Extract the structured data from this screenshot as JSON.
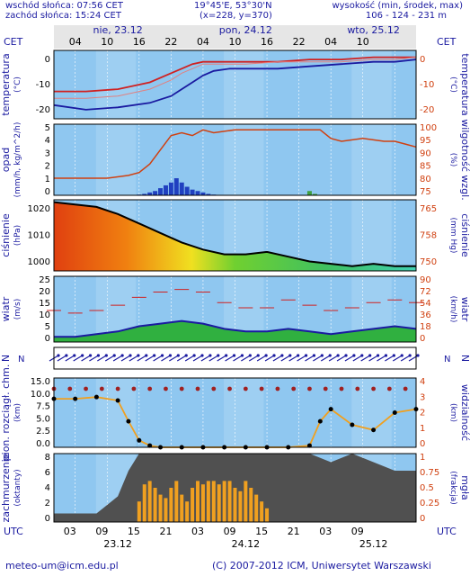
{
  "header": {
    "sunrise": "wschód słońca: 07:56 CET",
    "sunset": "zachód słońca: 15:24 CET",
    "coords": "19°45'E, 53°30'N",
    "grid": "(x=228, y=370)",
    "height_label": "wysokość (min, środek, max)",
    "height_values": "106 - 124 - 231 m"
  },
  "top_axis": {
    "tz_left": "CET",
    "tz_right": "CET",
    "days": [
      {
        "label": "nie, 23.12",
        "hour": 12
      },
      {
        "label": "pon, 24.12",
        "hour": 36
      },
      {
        "label": "wto, 25.12",
        "hour": 60
      }
    ],
    "hour_labels": [
      "04",
      "10",
      "16",
      "22",
      "04",
      "10",
      "16",
      "22",
      "04",
      "10"
    ]
  },
  "bottom_axis": {
    "tz_left": "UTC",
    "tz_right": "UTC",
    "hour_labels": [
      "03",
      "09",
      "15",
      "21",
      "03",
      "09",
      "15",
      "21",
      "03",
      "09"
    ],
    "days": [
      {
        "label": "23.12",
        "hour": 12
      },
      {
        "label": "24.12",
        "hour": 36
      },
      {
        "label": "25.12",
        "hour": 60
      }
    ]
  },
  "footer": {
    "email": "meteo-um@icm.edu.pl",
    "copyright": "(C) 2007-2012 ICM, Uniwersytet Warszawski"
  },
  "panels": {
    "temperature": {
      "left": "temperatura",
      "left_unit": "(°C)",
      "right": "temperatura",
      "right_unit": "(°C)",
      "ticks": [
        "0",
        "-10",
        "-20"
      ]
    },
    "precip": {
      "left": "opad",
      "left_unit": "(mm/h, kg/m^2/h)",
      "right": "wilgotność wzgl.",
      "right_unit": "(%)",
      "ticks_left": [
        "5",
        "4",
        "3",
        "2",
        "1",
        "0"
      ],
      "ticks_right": [
        "100",
        "95",
        "90",
        "85",
        "80",
        "75"
      ]
    },
    "pressure": {
      "left": "ciśnienie",
      "left_unit": "(hPa)",
      "right": "ciśnienie",
      "right_unit": "(mm Hg)",
      "ticks_left": [
        "1020",
        "1010",
        "1000"
      ],
      "ticks_right": [
        "765",
        "758",
        "750"
      ]
    },
    "wind": {
      "left": "wiatr",
      "left_unit": "(m/s)",
      "right": "wiatr",
      "right_unit": "(km/h)",
      "ticks_left": [
        "25",
        "20",
        "15",
        "10",
        "5",
        "0"
      ],
      "ticks_right": [
        "90",
        "72",
        "54",
        "36",
        "18",
        "0"
      ]
    },
    "winddir": {
      "left": "N",
      "right": "N"
    },
    "visibility": {
      "left": "pion. rozciągł. chm.",
      "left_unit": "(km)",
      "right": "widzialność",
      "right_unit": "(km)",
      "ticks_left": [
        "15.0",
        "10.0",
        "7.5",
        "5.0",
        "2.5",
        "0.0"
      ],
      "ticks_right": [
        "4",
        "3",
        "2",
        "1",
        "0"
      ]
    },
    "clouds": {
      "left": "zachmurzenie",
      "left_unit": "(oktanty)",
      "right": "mgła",
      "right_unit": "(frakcja)",
      "ticks_left": [
        "8",
        "6",
        "4",
        "2",
        "0"
      ],
      "ticks_right": [
        "1",
        "0.75",
        "0.5",
        "0.25",
        "0"
      ]
    }
  },
  "colors": {
    "sky": "#8fc7f0",
    "grey": "#cdcdcd",
    "night": "#d8d8d8",
    "text": "#1a1aa0",
    "temp_max": "#d02020",
    "temp_mid": "#e08080",
    "temp_min": "#1a1aa0",
    "humidity": "#d04010",
    "precip": "#2040c0",
    "cloud_dark": "#505050",
    "fog_bar": "#f0a020"
  },
  "chart_data": [
    {
      "type": "line",
      "title": "temperatura",
      "ylabel": "(°C)",
      "ylim": [
        -25,
        5
      ],
      "x_unit": "hours from 23.12 00:00 CET",
      "x": [
        0,
        6,
        12,
        18,
        22,
        24,
        26,
        28,
        30,
        33,
        36,
        42,
        48,
        54,
        60,
        64,
        68
      ],
      "series": [
        {
          "name": "max",
          "values": [
            -13,
            -13,
            -12,
            -9,
            -5,
            -3,
            -1,
            0,
            0,
            0,
            0,
            0,
            1,
            1,
            2,
            2,
            2
          ]
        },
        {
          "name": "mid",
          "values": [
            -16,
            -16,
            -15,
            -12,
            -8,
            -5,
            -3,
            -1,
            -1,
            -1,
            -1,
            0,
            0,
            0,
            1,
            1,
            2
          ]
        },
        {
          "name": "min",
          "values": [
            -19,
            -21,
            -20,
            -18,
            -15,
            -12,
            -9,
            -6,
            -4,
            -3,
            -3,
            -3,
            -2,
            -1,
            0,
            0,
            1
          ]
        }
      ]
    },
    {
      "type": "bar",
      "title": "opad",
      "ylabel": "(mm/h, kg/m^2/h)",
      "ylim": [
        0,
        5
      ],
      "x": [
        16,
        17,
        18,
        19,
        20,
        21,
        22,
        23,
        24,
        25,
        26,
        27,
        28,
        29,
        30,
        48,
        49
      ],
      "values": [
        0.05,
        0.1,
        0.2,
        0.3,
        0.5,
        0.7,
        0.9,
        1.2,
        0.9,
        0.6,
        0.4,
        0.3,
        0.2,
        0.1,
        0.05,
        0.3,
        0.1
      ]
    },
    {
      "type": "line",
      "title": "wilgotność wzgl.",
      "ylabel": "(%)",
      "ylim": [
        75,
        100
      ],
      "x": [
        0,
        6,
        10,
        14,
        16,
        18,
        20,
        22,
        24,
        26,
        28,
        30,
        34,
        44,
        50,
        52,
        54,
        58,
        62,
        64,
        66,
        68
      ],
      "values": [
        81,
        81,
        81,
        82,
        83,
        86,
        91,
        96,
        97,
        96,
        98,
        97,
        98,
        98,
        98,
        95,
        94,
        95,
        94,
        94,
        93,
        92
      ]
    },
    {
      "type": "area",
      "title": "ciśnienie",
      "ylabel": "(hPa)",
      "ylim": [
        995,
        1025
      ],
      "x": [
        0,
        4,
        8,
        12,
        16,
        20,
        24,
        28,
        32,
        36,
        40,
        44,
        48,
        52,
        56,
        60,
        64,
        68
      ],
      "values": [
        1024,
        1023,
        1022,
        1019,
        1015,
        1011,
        1007,
        1004,
        1002,
        1002,
        1003,
        1001,
        999,
        998,
        997,
        998,
        997,
        997
      ]
    },
    {
      "type": "line",
      "title": "wiatr",
      "ylabel": "(m/s)",
      "ylim": [
        0,
        25
      ],
      "x": [
        0,
        4,
        8,
        12,
        16,
        20,
        24,
        28,
        32,
        36,
        40,
        44,
        48,
        52,
        56,
        60,
        64,
        68
      ],
      "series": [
        {
          "name": "średni",
          "values": [
            2,
            2,
            3,
            4,
            6,
            7,
            8,
            7,
            5,
            4,
            4,
            5,
            4,
            3,
            4,
            5,
            6,
            5
          ]
        },
        {
          "name": "porywy",
          "values": [
            12,
            11,
            12,
            14,
            17,
            19,
            20,
            19,
            15,
            13,
            13,
            16,
            14,
            12,
            13,
            15,
            16,
            15
          ]
        }
      ]
    },
    {
      "type": "scatter",
      "title": "widzialność",
      "ylabel": "(km)",
      "ylim": [
        0,
        4
      ],
      "x": [
        0,
        4,
        8,
        12,
        14,
        16,
        18,
        20,
        24,
        28,
        32,
        36,
        40,
        44,
        48,
        50,
        52,
        56,
        60,
        64,
        68
      ],
      "values": [
        2.8,
        2.8,
        2.9,
        2.7,
        1.5,
        0.4,
        0.1,
        0.0,
        0.0,
        0.0,
        0.0,
        0.0,
        0.0,
        0.0,
        0.1,
        1.5,
        2.2,
        1.3,
        1.0,
        2.0,
        2.2
      ]
    },
    {
      "type": "area",
      "title": "zachmurzenie",
      "ylabel": "(oktanty)",
      "ylim": [
        0,
        8
      ],
      "x": [
        0,
        4,
        8,
        10,
        12,
        14,
        16,
        20,
        24,
        28,
        32,
        36,
        40,
        44,
        48,
        52,
        56,
        60,
        64,
        68
      ],
      "values": [
        1,
        1,
        1,
        2,
        3,
        6,
        8,
        8,
        8,
        8,
        8,
        8,
        8,
        8,
        8,
        7,
        8,
        7,
        6,
        6
      ]
    },
    {
      "type": "bar",
      "title": "mgła",
      "ylabel": "(frakcja)",
      "ylim": [
        0,
        1
      ],
      "x": [
        16,
        17,
        18,
        19,
        20,
        21,
        22,
        23,
        24,
        25,
        26,
        27,
        28,
        29,
        30,
        31,
        32,
        33,
        34,
        35,
        36,
        37,
        38,
        39,
        40
      ],
      "values": [
        0.3,
        0.55,
        0.6,
        0.5,
        0.4,
        0.35,
        0.5,
        0.6,
        0.4,
        0.3,
        0.5,
        0.6,
        0.55,
        0.6,
        0.6,
        0.55,
        0.6,
        0.6,
        0.5,
        0.45,
        0.6,
        0.5,
        0.4,
        0.3,
        0.2
      ]
    }
  ]
}
